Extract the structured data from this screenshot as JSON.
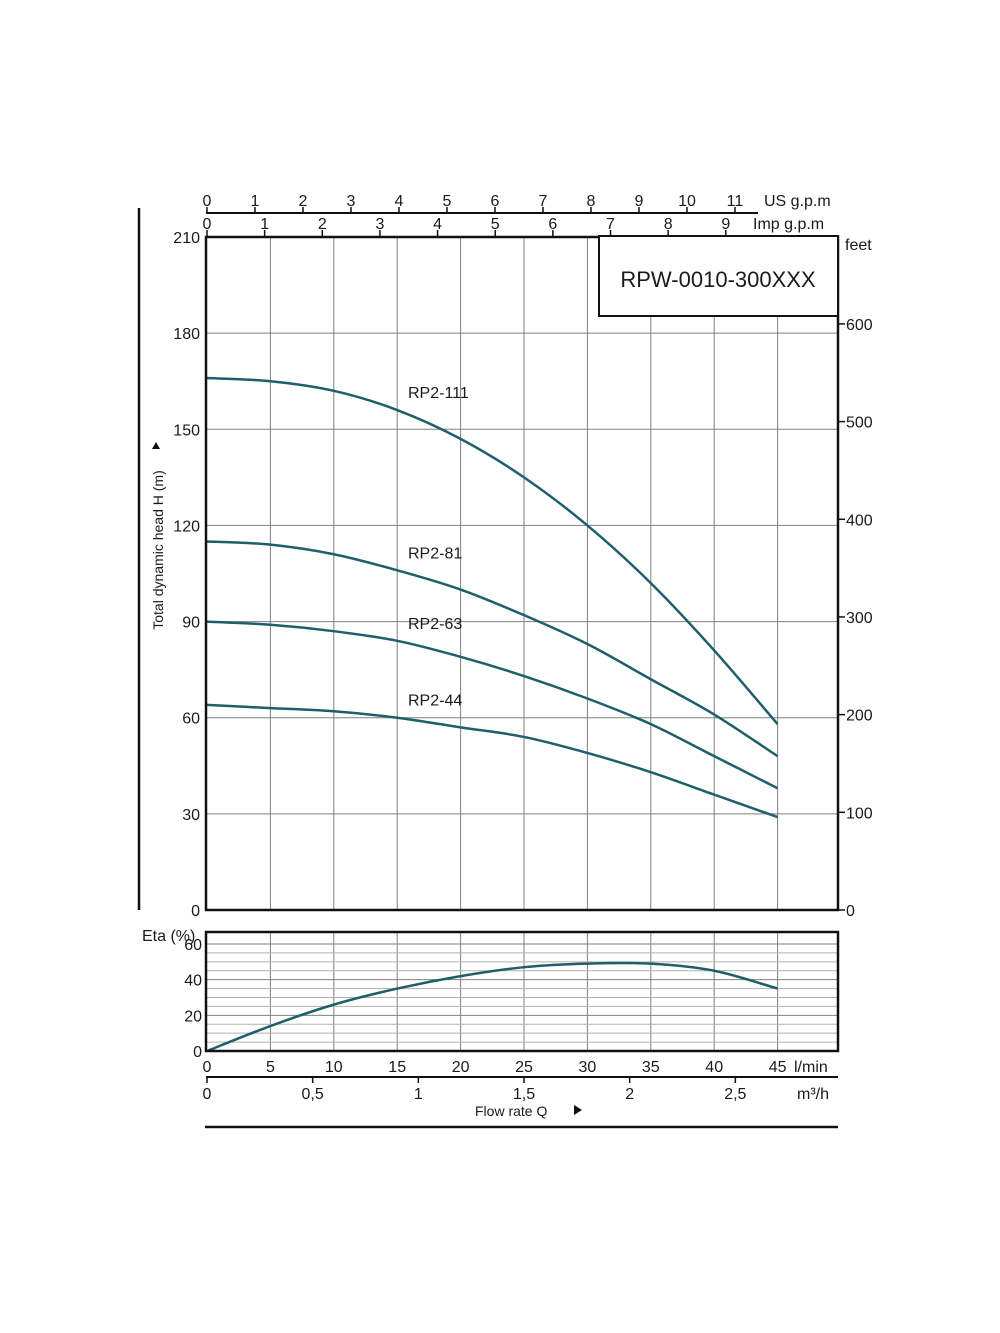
{
  "chart_data": [
    {
      "type": "line",
      "title": "RPW-0010-300XXX",
      "ylabel": "Total dynamic head H (m)",
      "ylim": [
        0,
        210
      ],
      "yticks": [
        0,
        30,
        60,
        90,
        120,
        150,
        180,
        210
      ],
      "y2_unit": "feet",
      "y2ticks": [
        0,
        100,
        200,
        300,
        400,
        500,
        600
      ],
      "x_unit": "l/min",
      "xlim": [
        0,
        50
      ],
      "xticks": [
        0,
        5,
        10,
        15,
        20,
        25,
        30,
        35,
        40,
        45
      ],
      "top_axes": [
        {
          "unit": "US g.p.m",
          "ticks": [
            0,
            1,
            2,
            3,
            4,
            5,
            6,
            7,
            8,
            9,
            10,
            11
          ]
        },
        {
          "unit": "Imp g.p.m",
          "ticks": [
            0,
            1,
            2,
            3,
            4,
            5,
            6,
            7,
            8,
            9
          ]
        }
      ],
      "grid": true,
      "series": [
        {
          "name": "RP2-111",
          "x": [
            0,
            5,
            10,
            15,
            20,
            25,
            30,
            35,
            40,
            45
          ],
          "y": [
            166,
            165,
            162,
            156,
            147,
            135,
            120,
            102,
            81,
            58
          ]
        },
        {
          "name": "RP2-81",
          "x": [
            0,
            5,
            10,
            15,
            20,
            25,
            30,
            35,
            40,
            45
          ],
          "y": [
            115,
            114,
            111,
            106,
            100,
            92,
            83,
            72,
            61,
            48
          ]
        },
        {
          "name": "RP2-63",
          "x": [
            0,
            5,
            10,
            15,
            20,
            25,
            30,
            35,
            40,
            45
          ],
          "y": [
            90,
            89,
            87,
            84,
            79,
            73,
            66,
            58,
            48,
            38
          ]
        },
        {
          "name": "RP2-44",
          "x": [
            0,
            5,
            10,
            15,
            20,
            25,
            30,
            35,
            40,
            45
          ],
          "y": [
            64,
            63,
            62,
            60,
            57,
            54,
            49,
            43,
            36,
            29
          ]
        }
      ]
    },
    {
      "type": "line",
      "ylabel": "Eta (%)",
      "ylim": [
        0,
        60
      ],
      "yticks": [
        0,
        20,
        40,
        60
      ],
      "x_unit": "l/min",
      "xticks": [
        0,
        5,
        10,
        15,
        20,
        25,
        30,
        35,
        40,
        45
      ],
      "x2_unit": "m³/h",
      "x2ticks": [
        "0",
        "0,5",
        "1",
        "1,5",
        "2",
        "2,5"
      ],
      "xlabel": "Flow rate  Q",
      "grid": true,
      "series": [
        {
          "name": "",
          "x": [
            0,
            5,
            10,
            15,
            20,
            25,
            30,
            35,
            40,
            45
          ],
          "y": [
            0,
            14,
            26,
            35,
            42,
            47,
            49,
            49,
            45,
            35
          ]
        }
      ]
    }
  ],
  "colors": {
    "curve": "#1e5f6b",
    "grid": "#808080",
    "frame": "#111111"
  }
}
